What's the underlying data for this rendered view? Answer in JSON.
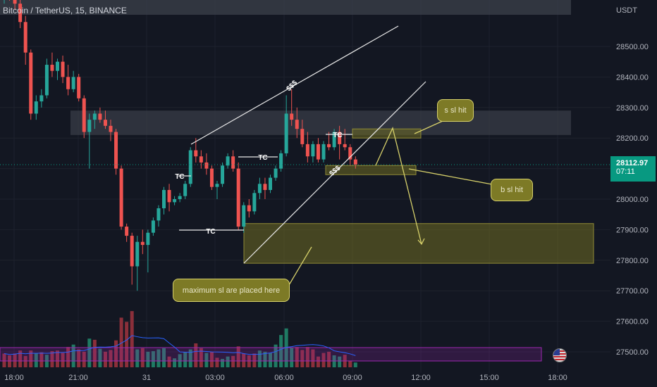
{
  "header": {
    "symbol_title": "Bitcoin / TetherUS, 15, BINANCE",
    "currency": "USDT"
  },
  "price_tag": {
    "price": "28112.97",
    "countdown": "07:11",
    "color": "#089981"
  },
  "callouts": {
    "s_sl": "s sl hit",
    "b_sl": "b sl hit",
    "max_sl": "maximum sl are placed here"
  },
  "colors": {
    "up": "#26a69a",
    "down": "#ef5350",
    "background": "#131722",
    "zone_olive": "#7d7a26",
    "zone_gray": "#363a45",
    "volume_ma": "#2962ff",
    "volume_box": "#9c27b0"
  },
  "icons": {
    "flag": "us-flag-icon"
  },
  "chart_data": {
    "type": "candlestick",
    "symbol": "Bitcoin / TetherUS",
    "interval": "15",
    "exchange": "BINANCE",
    "y_ticks": [
      "28500.00",
      "28400.00",
      "28300.00",
      "28200.00",
      "28100.00",
      "28000.00",
      "27900.00",
      "27800.00",
      "27700.00",
      "27600.00",
      "27500.00"
    ],
    "x_ticks": [
      "18:00",
      "21:00",
      "31",
      "03:00",
      "06:00",
      "09:00",
      "12:00",
      "15:00",
      "18:00"
    ],
    "ylim": [
      27450,
      28640
    ],
    "last_price": 28112.97,
    "candles": [
      [
        28680,
        28720,
        28640,
        28700
      ],
      [
        28700,
        28720,
        28650,
        28680
      ],
      [
        28680,
        28700,
        28620,
        28640
      ],
      [
        28640,
        28660,
        28560,
        28580
      ],
      [
        28580,
        28600,
        28440,
        28480
      ],
      [
        28480,
        28490,
        28260,
        28280
      ],
      [
        28280,
        28340,
        28260,
        28320
      ],
      [
        28320,
        28360,
        28300,
        28340
      ],
      [
        28340,
        28460,
        28330,
        28440
      ],
      [
        28440,
        28480,
        28400,
        28420
      ],
      [
        28420,
        28460,
        28390,
        28450
      ],
      [
        28450,
        28470,
        28380,
        28400
      ],
      [
        28400,
        28440,
        28340,
        28360
      ],
      [
        28360,
        28420,
        28350,
        28400
      ],
      [
        28400,
        28410,
        28320,
        28330
      ],
      [
        28330,
        28340,
        28200,
        28220
      ],
      [
        28220,
        28280,
        28100,
        28260
      ],
      [
        28260,
        28290,
        28230,
        28280
      ],
      [
        28280,
        28300,
        28250,
        28260
      ],
      [
        28260,
        28290,
        28230,
        28240
      ],
      [
        28240,
        28260,
        28190,
        28220
      ],
      [
        28220,
        28230,
        28080,
        28100
      ],
      [
        28100,
        28110,
        27900,
        27910
      ],
      [
        27910,
        27920,
        27860,
        27880
      ],
      [
        27880,
        27890,
        27720,
        27780
      ],
      [
        27780,
        27880,
        27700,
        27860
      ],
      [
        27860,
        27900,
        27820,
        27850
      ],
      [
        27850,
        27900,
        27760,
        27890
      ],
      [
        27890,
        27940,
        27880,
        27930
      ],
      [
        27930,
        27980,
        27910,
        27970
      ],
      [
        27970,
        28040,
        27950,
        28030
      ],
      [
        28030,
        28050,
        27960,
        27990
      ],
      [
        27990,
        28010,
        27980,
        28000
      ],
      [
        28000,
        28020,
        27990,
        28010
      ],
      [
        28010,
        28060,
        28000,
        28050
      ],
      [
        28050,
        28170,
        28040,
        28160
      ],
      [
        28160,
        28200,
        28120,
        28140
      ],
      [
        28140,
        28160,
        28100,
        28120
      ],
      [
        28120,
        28150,
        28080,
        28100
      ],
      [
        28100,
        28110,
        28030,
        28040
      ],
      [
        28040,
        28060,
        28000,
        28050
      ],
      [
        28050,
        28120,
        28040,
        28110
      ],
      [
        28110,
        28150,
        28100,
        28140
      ],
      [
        28140,
        28160,
        28090,
        28100
      ],
      [
        28100,
        28120,
        27900,
        27910
      ],
      [
        27910,
        27990,
        27890,
        27980
      ],
      [
        27980,
        28000,
        27940,
        27960
      ],
      [
        27960,
        28030,
        27950,
        28020
      ],
      [
        28020,
        28070,
        28000,
        28050
      ],
      [
        28050,
        28070,
        28000,
        28030
      ],
      [
        28030,
        28080,
        28020,
        28070
      ],
      [
        28070,
        28110,
        28060,
        28100
      ],
      [
        28100,
        28160,
        28090,
        28150
      ],
      [
        28150,
        28340,
        28140,
        28280
      ],
      [
        28280,
        28360,
        28240,
        28260
      ],
      [
        28260,
        28300,
        28200,
        28230
      ],
      [
        28230,
        28260,
        28170,
        28180
      ],
      [
        28180,
        28220,
        28120,
        28140
      ],
      [
        28140,
        28190,
        28120,
        28180
      ],
      [
        28180,
        28200,
        28120,
        28130
      ],
      [
        28130,
        28190,
        28120,
        28180
      ],
      [
        28180,
        28220,
        28160,
        28170
      ],
      [
        28170,
        28230,
        28160,
        28220
      ],
      [
        28220,
        28240,
        28130,
        28180
      ],
      [
        28180,
        28230,
        28160,
        28170
      ],
      [
        28170,
        28180,
        28110,
        28130
      ],
      [
        28130,
        28140,
        28100,
        28113
      ]
    ],
    "volume_range": [
      0,
      1000
    ],
    "volumes": [
      {
        "v": 230,
        "up": false
      },
      {
        "v": 200,
        "up": false
      },
      {
        "v": 230,
        "up": false
      },
      {
        "v": 280,
        "up": false
      },
      {
        "v": 190,
        "up": false
      },
      {
        "v": 280,
        "up": false
      },
      {
        "v": 230,
        "up": true
      },
      {
        "v": 250,
        "up": false
      },
      {
        "v": 210,
        "up": true
      },
      {
        "v": 270,
        "up": false
      },
      {
        "v": 280,
        "up": false
      },
      {
        "v": 240,
        "up": false
      },
      {
        "v": 340,
        "up": false
      },
      {
        "v": 380,
        "up": true
      },
      {
        "v": 300,
        "up": false
      },
      {
        "v": 260,
        "up": false
      },
      {
        "v": 480,
        "up": true
      },
      {
        "v": 460,
        "up": false
      },
      {
        "v": 310,
        "up": true
      },
      {
        "v": 260,
        "up": false
      },
      {
        "v": 290,
        "up": false
      },
      {
        "v": 450,
        "up": false
      },
      {
        "v": 830,
        "up": false
      },
      {
        "v": 760,
        "up": false
      },
      {
        "v": 940,
        "up": false
      },
      {
        "v": 300,
        "up": true
      },
      {
        "v": 320,
        "up": false
      },
      {
        "v": 260,
        "up": true
      },
      {
        "v": 270,
        "up": true
      },
      {
        "v": 300,
        "up": true
      },
      {
        "v": 320,
        "up": true
      },
      {
        "v": 180,
        "up": false
      },
      {
        "v": 150,
        "up": true
      },
      {
        "v": 220,
        "up": true
      },
      {
        "v": 250,
        "up": true
      },
      {
        "v": 300,
        "up": true
      },
      {
        "v": 400,
        "up": false
      },
      {
        "v": 320,
        "up": false
      },
      {
        "v": 240,
        "up": true
      },
      {
        "v": 260,
        "up": false
      },
      {
        "v": 160,
        "up": false
      },
      {
        "v": 140,
        "up": true
      },
      {
        "v": 180,
        "up": true
      },
      {
        "v": 190,
        "up": false
      },
      {
        "v": 350,
        "up": false
      },
      {
        "v": 230,
        "up": false
      },
      {
        "v": 200,
        "up": false
      },
      {
        "v": 230,
        "up": false
      },
      {
        "v": 280,
        "up": true
      },
      {
        "v": 260,
        "up": true
      },
      {
        "v": 240,
        "up": true
      },
      {
        "v": 380,
        "up": true
      },
      {
        "v": 540,
        "up": true
      },
      {
        "v": 650,
        "up": true
      },
      {
        "v": 330,
        "up": true
      },
      {
        "v": 340,
        "up": false
      },
      {
        "v": 290,
        "up": false
      },
      {
        "v": 340,
        "up": false
      },
      {
        "v": 300,
        "up": false
      },
      {
        "v": 180,
        "up": false
      },
      {
        "v": 240,
        "up": false
      },
      {
        "v": 260,
        "up": false
      },
      {
        "v": 200,
        "up": true
      },
      {
        "v": 180,
        "up": true
      },
      {
        "v": 210,
        "up": false
      },
      {
        "v": 110,
        "up": false
      },
      {
        "v": 80,
        "up": true
      }
    ],
    "annotations": {
      "zones": [
        {
          "name": "resistance-zone",
          "from": 28210,
          "to": 28290
        },
        {
          "name": "s-sl-box",
          "from": 28200,
          "to": 28230
        },
        {
          "name": "b-sl-box",
          "from": 28080,
          "to": 28110
        },
        {
          "name": "max-sl-zone",
          "from": 27790,
          "to": 27920
        }
      ],
      "tc_labels": [
        "TC",
        "TC",
        "TC",
        "TC"
      ],
      "liquidity_labels": [
        "$$$",
        "$$$"
      ]
    }
  }
}
